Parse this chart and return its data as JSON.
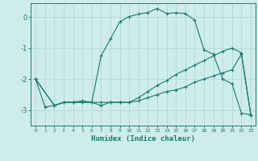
{
  "xlabel": "Humidex (Indice chaleur)",
  "ylabel": "",
  "bg_color": "#ceecea",
  "grid_color": "#b0d8d5",
  "line_color": "#1a7a6e",
  "xlim": [
    -0.5,
    23.5
  ],
  "ylim": [
    -3.5,
    0.45
  ],
  "yticks": [
    0,
    -1,
    -2,
    -3
  ],
  "xticks": [
    0,
    1,
    2,
    3,
    4,
    5,
    6,
    7,
    8,
    9,
    10,
    11,
    12,
    13,
    14,
    15,
    16,
    17,
    18,
    19,
    20,
    21,
    22,
    23
  ],
  "line1_x": [
    0,
    1,
    2,
    3,
    4,
    5,
    6,
    7,
    8,
    9,
    10,
    11,
    12,
    13,
    14,
    15,
    16,
    17,
    18,
    19,
    20,
    21,
    22,
    23
  ],
  "line1_y": [
    -2.0,
    -2.9,
    -2.85,
    -2.75,
    -2.75,
    -2.7,
    -2.75,
    -1.25,
    -0.7,
    -0.15,
    0.02,
    0.1,
    0.15,
    0.28,
    0.12,
    0.14,
    0.12,
    -0.1,
    -1.05,
    -1.2,
    -2.0,
    -2.15,
    -3.1,
    -3.15
  ],
  "line2_x": [
    0,
    2,
    3,
    4,
    5,
    6,
    7,
    8,
    9,
    10,
    11,
    12,
    13,
    14,
    15,
    16,
    17,
    18,
    19,
    20,
    21,
    22,
    23
  ],
  "line2_y": [
    -2.0,
    -2.85,
    -2.75,
    -2.75,
    -2.75,
    -2.75,
    -2.75,
    -2.75,
    -2.75,
    -2.75,
    -2.7,
    -2.6,
    -2.5,
    -2.4,
    -2.35,
    -2.25,
    -2.1,
    -2.0,
    -1.9,
    -1.8,
    -1.7,
    -1.2,
    -3.15
  ],
  "line3_x": [
    0,
    2,
    3,
    4,
    5,
    6,
    7,
    8,
    9,
    10,
    11,
    12,
    13,
    14,
    15,
    16,
    17,
    18,
    19,
    20,
    21,
    22,
    23
  ],
  "line3_y": [
    -2.0,
    -2.85,
    -2.75,
    -2.75,
    -2.75,
    -2.75,
    -2.85,
    -2.75,
    -2.75,
    -2.75,
    -2.6,
    -2.4,
    -2.2,
    -2.05,
    -1.85,
    -1.7,
    -1.55,
    -1.4,
    -1.25,
    -1.1,
    -1.0,
    -1.15,
    -3.15
  ]
}
